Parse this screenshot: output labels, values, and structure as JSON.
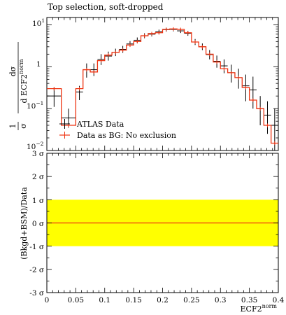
{
  "chart_data": [
    {
      "type": "line",
      "title": "Top selection, soft-dropped",
      "xlabel": "ECF2",
      "xlabel_sup": "norm",
      "ylabel": {
        "numerator": "dσ",
        "denominator": "d ECF2",
        "denominator_sup": "norm",
        "prefix_num": "1",
        "prefix_den": "σ"
      },
      "yscale": "log",
      "xlim": [
        0,
        0.4
      ],
      "ylim": [
        0.01,
        15
      ],
      "grid": false,
      "legend_position": "bottom-left",
      "y_tick_labels": [
        {
          "base": "10",
          "exp": "1"
        },
        {
          "base": "1",
          "exp": ""
        },
        {
          "base": "10",
          "exp": "−1"
        },
        {
          "base": "10",
          "exp": "−2"
        }
      ],
      "x_edges": [
        0,
        0.025,
        0.05,
        0.0625,
        0.075,
        0.0875,
        0.1,
        0.1125,
        0.125,
        0.1375,
        0.15,
        0.1625,
        0.175,
        0.1875,
        0.2,
        0.2125,
        0.225,
        0.2375,
        0.25,
        0.2625,
        0.275,
        0.2875,
        0.3,
        0.3125,
        0.325,
        0.3375,
        0.35,
        0.3625,
        0.375,
        0.3875,
        0.4
      ],
      "series": [
        {
          "name": "ATLAS Data",
          "color": "#000000",
          "style": "points-with-errors",
          "values": [
            0.2,
            0.06,
            0.25,
            0.85,
            0.85,
            1.5,
            1.8,
            2.2,
            2.6,
            3.5,
            4.3,
            5.5,
            6.0,
            6.8,
            7.7,
            7.8,
            7.2,
            6.3,
            3.9,
            3.0,
            1.95,
            1.35,
            1.05,
            0.72,
            0.55,
            0.35,
            0.28,
            0.1,
            0.07,
            0.04
          ],
          "err_low": [
            0.09,
            0.025,
            0.09,
            0.3,
            0.25,
            0.4,
            0.4,
            0.4,
            0.45,
            0.5,
            0.6,
            0.7,
            0.7,
            0.8,
            0.8,
            0.8,
            0.8,
            0.8,
            0.6,
            0.5,
            0.45,
            0.4,
            0.35,
            0.3,
            0.25,
            0.2,
            0.18,
            0.06,
            0.045,
            0.03
          ],
          "err_high": [
            0.12,
            0.04,
            0.1,
            0.35,
            0.35,
            0.5,
            0.5,
            0.5,
            0.55,
            0.6,
            0.7,
            0.8,
            0.8,
            0.9,
            0.9,
            0.9,
            0.9,
            0.9,
            0.7,
            0.6,
            0.55,
            0.5,
            0.45,
            0.4,
            0.35,
            0.3,
            0.3,
            0.1,
            0.08,
            0.06
          ]
        },
        {
          "name": "Data as BG: No exclusion",
          "color": "#ee3311",
          "style": "step-with-errors",
          "values": [
            0.3,
            0.04,
            0.3,
            0.85,
            0.75,
            1.4,
            1.9,
            2.2,
            2.5,
            3.3,
            4.0,
            5.5,
            6.2,
            6.5,
            7.8,
            8.0,
            7.8,
            6.5,
            3.9,
            3.0,
            2.0,
            1.3,
            0.9,
            0.72,
            0.55,
            0.32,
            0.16,
            0.1,
            0.04,
            0.015
          ],
          "err": 0.1
        }
      ]
    },
    {
      "type": "line",
      "ylabel": "(Bkgd+BSM)/Data",
      "xlabel": "ECF2",
      "xlabel_sup": "norm",
      "xlim": [
        0,
        0.4
      ],
      "ylim": [
        -3,
        3
      ],
      "y_tick_labels": [
        "3 σ",
        "2 σ",
        "1 σ",
        "0 σ",
        "-1 σ",
        "-2 σ",
        "-3 σ"
      ],
      "y_tick_values": [
        3,
        2,
        1,
        0,
        -1,
        -2,
        -3
      ],
      "x_tick_labels": [
        "0",
        "0.05",
        "0.1",
        "0.15",
        "0.2",
        "0.25",
        "0.3",
        "0.35",
        "0.4"
      ],
      "x_tick_values": [
        0,
        0.05,
        0.1,
        0.15,
        0.2,
        0.25,
        0.3,
        0.35,
        0.4
      ],
      "band": {
        "low": -1,
        "high": 1,
        "color": "#ffff00"
      },
      "series": [
        {
          "name": "",
          "color": "#ee3311",
          "values": [
            0,
            0
          ]
        }
      ]
    }
  ]
}
